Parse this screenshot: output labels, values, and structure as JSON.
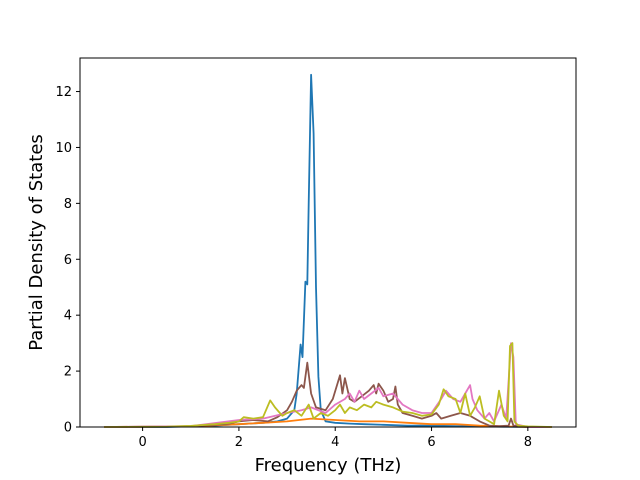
{
  "chart_data": {
    "type": "line",
    "title": "",
    "xlabel": "Frequency (THz)",
    "ylabel": "Partial Density of States",
    "xlim": [
      -1.3,
      9.0
    ],
    "ylim": [
      0,
      13.2
    ],
    "xticks": [
      0,
      2,
      4,
      6,
      8
    ],
    "yticks": [
      0,
      2,
      4,
      6,
      8,
      10,
      12
    ],
    "grid": false,
    "legend": "none",
    "series": [
      {
        "color": "#1f77b4",
        "points": [
          [
            -0.8,
            0
          ],
          [
            0.5,
            0
          ],
          [
            1.0,
            0.02
          ],
          [
            1.5,
            0.05
          ],
          [
            2.0,
            0.1
          ],
          [
            2.5,
            0.15
          ],
          [
            2.8,
            0.2
          ],
          [
            3.0,
            0.3
          ],
          [
            3.15,
            0.6
          ],
          [
            3.2,
            1.2
          ],
          [
            3.28,
            2.95
          ],
          [
            3.32,
            2.5
          ],
          [
            3.38,
            5.2
          ],
          [
            3.42,
            5.1
          ],
          [
            3.45,
            8.0
          ],
          [
            3.5,
            12.6
          ],
          [
            3.55,
            10.5
          ],
          [
            3.6,
            5.0
          ],
          [
            3.65,
            1.8
          ],
          [
            3.7,
            0.6
          ],
          [
            3.8,
            0.2
          ],
          [
            4.0,
            0.15
          ],
          [
            4.3,
            0.12
          ],
          [
            4.6,
            0.1
          ],
          [
            5.0,
            0.08
          ],
          [
            5.5,
            0.05
          ],
          [
            6.0,
            0.05
          ],
          [
            6.5,
            0.03
          ],
          [
            7.0,
            0.02
          ],
          [
            7.5,
            0.01
          ],
          [
            8.0,
            0
          ],
          [
            8.5,
            0
          ]
        ]
      },
      {
        "color": "#ff7f0e",
        "points": [
          [
            -0.8,
            0
          ],
          [
            1.0,
            0.02
          ],
          [
            2.0,
            0.1
          ],
          [
            2.5,
            0.15
          ],
          [
            3.0,
            0.2
          ],
          [
            3.5,
            0.3
          ],
          [
            4.0,
            0.25
          ],
          [
            4.5,
            0.2
          ],
          [
            5.0,
            0.2
          ],
          [
            5.5,
            0.15
          ],
          [
            6.0,
            0.1
          ],
          [
            6.5,
            0.1
          ],
          [
            7.0,
            0.05
          ],
          [
            7.5,
            0.02
          ],
          [
            8.0,
            0
          ],
          [
            8.5,
            0
          ]
        ]
      },
      {
        "color": "#8c564b",
        "points": [
          [
            -0.8,
            0
          ],
          [
            0.5,
            0.01
          ],
          [
            1.0,
            0.03
          ],
          [
            1.5,
            0.08
          ],
          [
            1.8,
            0.12
          ],
          [
            2.0,
            0.2
          ],
          [
            2.3,
            0.25
          ],
          [
            2.6,
            0.2
          ],
          [
            2.8,
            0.35
          ],
          [
            3.0,
            0.6
          ],
          [
            3.1,
            0.9
          ],
          [
            3.2,
            1.3
          ],
          [
            3.3,
            1.5
          ],
          [
            3.35,
            1.4
          ],
          [
            3.42,
            2.3
          ],
          [
            3.5,
            1.2
          ],
          [
            3.6,
            0.7
          ],
          [
            3.8,
            0.6
          ],
          [
            3.95,
            1.0
          ],
          [
            4.1,
            1.85
          ],
          [
            4.15,
            1.2
          ],
          [
            4.2,
            1.75
          ],
          [
            4.3,
            1.0
          ],
          [
            4.4,
            0.9
          ],
          [
            4.55,
            1.1
          ],
          [
            4.7,
            1.3
          ],
          [
            4.8,
            1.5
          ],
          [
            4.85,
            1.2
          ],
          [
            4.9,
            1.55
          ],
          [
            5.0,
            1.3
          ],
          [
            5.1,
            0.9
          ],
          [
            5.2,
            1.0
          ],
          [
            5.25,
            1.45
          ],
          [
            5.3,
            0.8
          ],
          [
            5.4,
            0.5
          ],
          [
            5.6,
            0.4
          ],
          [
            5.8,
            0.3
          ],
          [
            6.0,
            0.4
          ],
          [
            6.1,
            0.5
          ],
          [
            6.2,
            0.3
          ],
          [
            6.4,
            0.4
          ],
          [
            6.6,
            0.5
          ],
          [
            6.8,
            0.4
          ],
          [
            7.0,
            0.2
          ],
          [
            7.2,
            0.05
          ],
          [
            7.4,
            0.03
          ],
          [
            7.6,
            0.05
          ],
          [
            7.65,
            0.3
          ],
          [
            7.7,
            0.05
          ],
          [
            8.0,
            0
          ],
          [
            8.5,
            0
          ]
        ]
      },
      {
        "color": "#e377c2",
        "points": [
          [
            -0.8,
            0
          ],
          [
            1.0,
            0.03
          ],
          [
            2.0,
            0.25
          ],
          [
            2.5,
            0.3
          ],
          [
            3.0,
            0.5
          ],
          [
            3.3,
            0.6
          ],
          [
            3.5,
            0.7
          ],
          [
            3.8,
            0.5
          ],
          [
            4.0,
            0.8
          ],
          [
            4.2,
            1.0
          ],
          [
            4.3,
            1.2
          ],
          [
            4.4,
            0.9
          ],
          [
            4.5,
            1.3
          ],
          [
            4.6,
            1.0
          ],
          [
            4.75,
            1.2
          ],
          [
            4.9,
            1.4
          ],
          [
            5.0,
            1.1
          ],
          [
            5.2,
            1.2
          ],
          [
            5.4,
            0.8
          ],
          [
            5.6,
            0.6
          ],
          [
            5.8,
            0.5
          ],
          [
            6.0,
            0.5
          ],
          [
            6.2,
            1.0
          ],
          [
            6.3,
            1.3
          ],
          [
            6.45,
            1.0
          ],
          [
            6.6,
            0.9
          ],
          [
            6.7,
            1.2
          ],
          [
            6.8,
            1.5
          ],
          [
            6.85,
            1.0
          ],
          [
            6.95,
            0.6
          ],
          [
            7.1,
            0.3
          ],
          [
            7.2,
            0.5
          ],
          [
            7.3,
            0.2
          ],
          [
            7.45,
            0.8
          ],
          [
            7.55,
            0.3
          ],
          [
            7.65,
            3.0
          ],
          [
            7.7,
            2.5
          ],
          [
            7.75,
            0.1
          ],
          [
            8.0,
            0
          ],
          [
            8.5,
            0
          ]
        ]
      },
      {
        "color": "#bcbd22",
        "points": [
          [
            -0.8,
            0
          ],
          [
            0.5,
            0.01
          ],
          [
            1.0,
            0.04
          ],
          [
            1.5,
            0.1
          ],
          [
            1.8,
            0.15
          ],
          [
            2.0,
            0.2
          ],
          [
            2.1,
            0.35
          ],
          [
            2.3,
            0.3
          ],
          [
            2.5,
            0.35
          ],
          [
            2.65,
            0.95
          ],
          [
            2.75,
            0.7
          ],
          [
            2.9,
            0.4
          ],
          [
            3.0,
            0.5
          ],
          [
            3.15,
            0.6
          ],
          [
            3.3,
            0.4
          ],
          [
            3.45,
            0.8
          ],
          [
            3.55,
            0.3
          ],
          [
            3.7,
            0.5
          ],
          [
            3.85,
            0.4
          ],
          [
            4.0,
            0.6
          ],
          [
            4.1,
            0.8
          ],
          [
            4.2,
            0.5
          ],
          [
            4.3,
            0.7
          ],
          [
            4.45,
            0.6
          ],
          [
            4.6,
            0.8
          ],
          [
            4.75,
            0.7
          ],
          [
            4.85,
            0.9
          ],
          [
            5.0,
            0.8
          ],
          [
            5.2,
            0.7
          ],
          [
            5.4,
            0.55
          ],
          [
            5.6,
            0.5
          ],
          [
            5.8,
            0.4
          ],
          [
            6.0,
            0.45
          ],
          [
            6.15,
            0.8
          ],
          [
            6.25,
            1.35
          ],
          [
            6.35,
            1.1
          ],
          [
            6.5,
            1.0
          ],
          [
            6.6,
            0.5
          ],
          [
            6.7,
            1.2
          ],
          [
            6.8,
            0.4
          ],
          [
            6.9,
            0.7
          ],
          [
            7.0,
            1.1
          ],
          [
            7.1,
            0.3
          ],
          [
            7.2,
            0.2
          ],
          [
            7.3,
            0.1
          ],
          [
            7.4,
            1.3
          ],
          [
            7.5,
            0.4
          ],
          [
            7.58,
            0.2
          ],
          [
            7.63,
            2.9
          ],
          [
            7.68,
            3.0
          ],
          [
            7.72,
            0.2
          ],
          [
            7.8,
            0.05
          ],
          [
            8.0,
            0.02
          ],
          [
            8.5,
            0
          ]
        ]
      }
    ]
  }
}
